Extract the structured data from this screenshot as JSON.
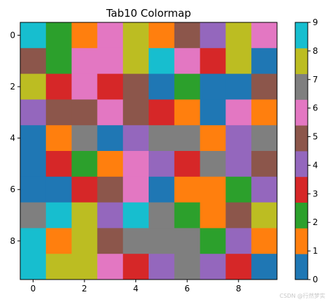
{
  "chart_data": {
    "type": "heatmap",
    "title": "Tab10 Colormap",
    "colormap": "tab10",
    "palette": [
      "#1f77b4",
      "#ff7f0e",
      "#2ca02c",
      "#d62728",
      "#9467bd",
      "#8c564b",
      "#e377c2",
      "#7f7f7f",
      "#bcbd22",
      "#17becf"
    ],
    "matrix": [
      [
        9,
        2,
        1,
        6,
        8,
        1,
        5,
        4,
        8,
        6
      ],
      [
        5,
        2,
        6,
        6,
        8,
        9,
        6,
        3,
        8,
        0
      ],
      [
        8,
        3,
        6,
        3,
        5,
        0,
        2,
        0,
        0,
        5
      ],
      [
        4,
        5,
        5,
        6,
        5,
        3,
        1,
        0,
        6,
        1
      ],
      [
        0,
        1,
        7,
        0,
        4,
        7,
        7,
        1,
        4,
        7
      ],
      [
        0,
        3,
        2,
        1,
        6,
        4,
        3,
        7,
        4,
        5
      ],
      [
        0,
        0,
        3,
        5,
        6,
        0,
        1,
        1,
        2,
        4
      ],
      [
        7,
        9,
        8,
        4,
        9,
        7,
        2,
        1,
        5,
        8
      ],
      [
        9,
        1,
        8,
        5,
        7,
        7,
        7,
        2,
        4,
        1
      ],
      [
        9,
        8,
        8,
        6,
        3,
        4,
        7,
        4,
        3,
        0
      ]
    ],
    "x_ticks": [
      "0",
      "2",
      "4",
      "6",
      "8"
    ],
    "y_ticks": [
      "0",
      "2",
      "4",
      "6",
      "8"
    ],
    "colorbar": {
      "min": 0,
      "max": 9,
      "ticks": [
        "0",
        "1",
        "2",
        "3",
        "4",
        "5",
        "6",
        "7",
        "8",
        "9"
      ]
    },
    "xlabel": "",
    "ylabel": ""
  },
  "watermark": "CSDN @行然梦实"
}
